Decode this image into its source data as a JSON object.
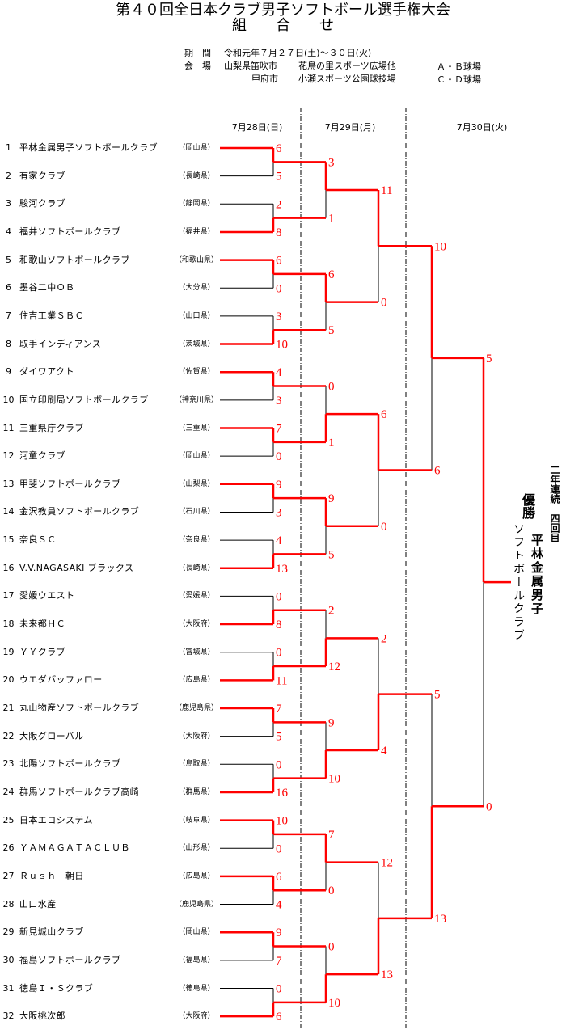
{
  "header": {
    "title": "第４０回全日本クラブ男子ソフトボール選手権大会",
    "subtitle": "組　　合　　せ"
  },
  "info": {
    "period_label": "期　間",
    "period_value": "令和元年７月２７日(土)～３０日(火)",
    "venue_label": "会　場",
    "venues": [
      {
        "city": "山梨県笛吹市",
        "site": "花鳥の里スポーツ広場他",
        "fields": "Ａ・Ｂ球場"
      },
      {
        "city": "甲府市",
        "site": "小瀬スポーツ公園球技場",
        "fields": "Ｃ・Ｄ球場"
      }
    ]
  },
  "dates": [
    "7月28日(日)",
    "7月29日(月)",
    "7月30日(火)"
  ],
  "teams": [
    {
      "no": "1",
      "name": "平林金属男子ソフトボールクラブ",
      "pref": "（岡山県）"
    },
    {
      "no": "2",
      "name": "有家クラブ",
      "pref": "（長崎県）"
    },
    {
      "no": "3",
      "name": "駿河クラブ",
      "pref": "（静岡県）"
    },
    {
      "no": "4",
      "name": "福井ソフトボールクラブ",
      "pref": "（福井県）"
    },
    {
      "no": "5",
      "name": "和歌山ソフトボールクラブ",
      "pref": "（和歌山県）"
    },
    {
      "no": "6",
      "name": "墨谷二中ＯＢ",
      "pref": "（大分県）"
    },
    {
      "no": "7",
      "name": "住吉工業ＳＢＣ",
      "pref": "（山口県）"
    },
    {
      "no": "8",
      "name": "取手インディアンス",
      "pref": "（茨城県）"
    },
    {
      "no": "9",
      "name": "ダイワアクト",
      "pref": "（佐賀県）"
    },
    {
      "no": "10",
      "name": "国立印刷局ソフトボールクラブ",
      "pref": "（神奈川県）"
    },
    {
      "no": "11",
      "name": "三重県庁クラブ",
      "pref": "（三重県）"
    },
    {
      "no": "12",
      "name": "河童クラブ",
      "pref": "（岡山県）"
    },
    {
      "no": "13",
      "name": "甲斐ソフトボールクラブ",
      "pref": "（山梨県）"
    },
    {
      "no": "14",
      "name": "金沢教員ソフトボールクラブ",
      "pref": "（石川県）"
    },
    {
      "no": "15",
      "name": "奈良ＳＣ",
      "pref": "（奈良県）"
    },
    {
      "no": "16",
      "name": "V.V.NAGASAKI ブラックス",
      "pref": "（長崎県）"
    },
    {
      "no": "17",
      "name": "愛媛ウエスト",
      "pref": "（愛媛県）"
    },
    {
      "no": "18",
      "name": "未来都ＨＣ",
      "pref": "（大阪府）"
    },
    {
      "no": "19",
      "name": "ＹＹクラブ",
      "pref": "（宮城県）"
    },
    {
      "no": "20",
      "name": "ウエダバッファロー",
      "pref": "（広島県）"
    },
    {
      "no": "21",
      "name": "丸山物産ソフトボールクラブ",
      "pref": "（鹿児島県）"
    },
    {
      "no": "22",
      "name": "大阪グローバル",
      "pref": "（大阪府）"
    },
    {
      "no": "23",
      "name": "北陽ソフトボールクラブ",
      "pref": "（鳥取県）"
    },
    {
      "no": "24",
      "name": "群馬ソフトボールクラブ高崎",
      "pref": "（群馬県）"
    },
    {
      "no": "25",
      "name": "日本エコシステム",
      "pref": "（岐阜県）"
    },
    {
      "no": "26",
      "name": "ＹＡＭＡＧＡＴＡＣＬＵＢ",
      "pref": "（山形県）"
    },
    {
      "no": "27",
      "name": "Ｒｕｓｈ　朝日",
      "pref": "（広島県）"
    },
    {
      "no": "28",
      "name": "山口水産",
      "pref": "（鹿児島県）"
    },
    {
      "no": "29",
      "name": "新見城山クラブ",
      "pref": "（岡山県）"
    },
    {
      "no": "30",
      "name": "福島ソフトボールクラブ",
      "pref": "（福島県）"
    },
    {
      "no": "31",
      "name": "徳島Ｉ・Ｓクラブ",
      "pref": "（徳島県）"
    },
    {
      "no": "32",
      "name": "大阪桃次郎",
      "pref": "（大阪府）"
    }
  ],
  "rounds": [
    [
      [
        6,
        5
      ],
      [
        2,
        8
      ],
      [
        6,
        0
      ],
      [
        3,
        10
      ],
      [
        4,
        3
      ],
      [
        7,
        0
      ],
      [
        9,
        3
      ],
      [
        4,
        13
      ],
      [
        0,
        8
      ],
      [
        0,
        11
      ],
      [
        7,
        5
      ],
      [
        0,
        16
      ],
      [
        10,
        0
      ],
      [
        6,
        4
      ],
      [
        9,
        7
      ],
      [
        0,
        6
      ]
    ],
    [
      [
        3,
        1
      ],
      [
        6,
        5
      ],
      [
        0,
        1
      ],
      [
        9,
        5
      ],
      [
        2,
        12
      ],
      [
        9,
        10
      ],
      [
        7,
        0
      ],
      [
        0,
        10
      ]
    ],
    [
      [
        11,
        0
      ],
      [
        6,
        0
      ],
      [
        2,
        4
      ],
      [
        12,
        13
      ]
    ],
    [
      [
        10,
        6
      ],
      [
        5,
        13
      ]
    ],
    [
      [
        5,
        0
      ]
    ]
  ],
  "champion": {
    "label": "優勝",
    "name": "平林金属男子",
    "name2": "ソフトボールクラブ",
    "note": "二年連続　四回目"
  },
  "colors": {
    "winner_line": "#ff0000",
    "loser_line": "#000000",
    "score": "#ff0000"
  }
}
